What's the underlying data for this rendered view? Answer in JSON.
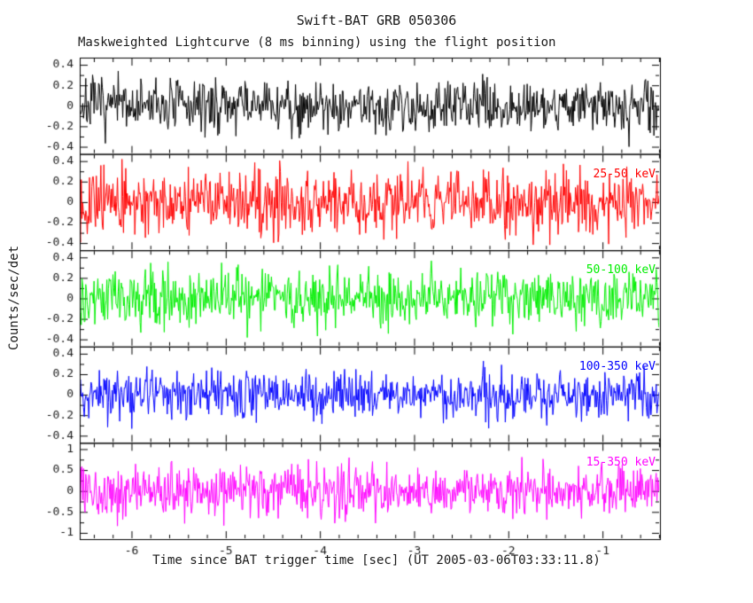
{
  "title": "Swift-BAT GRB 050306",
  "subtitle": "Maskweighted Lightcurve (8 ms binning) using the flight position",
  "xlabel": "Time since BAT trigger time [sec] (UT 2005-03-06T03:33:11.8)",
  "ylabel": "Counts/sec/det",
  "frame_color": "#000000",
  "chart_data": {
    "type": "line",
    "title": "Swift-BAT GRB 050306",
    "subtitle": "Maskweighted Lightcurve (8 ms binning) using the flight position",
    "xlabel": "Time since BAT trigger time [sec] (UT 2005-03-06T03:33:11.8)",
    "ylabel": "Counts/sec/det",
    "x_range": [
      -6.55,
      -0.39
    ],
    "bin_seconds": 0.008,
    "x_ticks": [
      "-6",
      "-5",
      "-4",
      "-3",
      "-2",
      "-1"
    ],
    "x_minor_step": 0.2,
    "grid": false,
    "legend_position": "inside-right-per-panel",
    "panels": [
      {
        "name": "lightcurve-black",
        "label": "",
        "color": "#000000",
        "ylim": [
          -0.47,
          0.47
        ],
        "y_ticks": [
          "0.4",
          "0.2",
          "0",
          "-0.2",
          "-0.4"
        ],
        "y_minor_step": 0.1,
        "noise_sigma": 0.13,
        "mean": 0,
        "seed": 7
      },
      {
        "name": "lightcurve-red",
        "label": "25-50 keV",
        "color": "#ff0000",
        "ylim": [
          -0.47,
          0.47
        ],
        "y_ticks": [
          "0.4",
          "0.2",
          "0",
          "-0.2",
          "-0.4"
        ],
        "y_minor_step": 0.1,
        "noise_sigma": 0.15,
        "mean": 0,
        "seed": 13
      },
      {
        "name": "lightcurve-green",
        "label": "50-100 keV",
        "color": "#00ee00",
        "ylim": [
          -0.47,
          0.47
        ],
        "y_ticks": [
          "0.4",
          "0.2",
          "0",
          "-0.2",
          "-0.4"
        ],
        "y_minor_step": 0.1,
        "noise_sigma": 0.14,
        "mean": 0,
        "seed": 29
      },
      {
        "name": "lightcurve-blue",
        "label": "100-350 keV",
        "color": "#0000ff",
        "ylim": [
          -0.47,
          0.47
        ],
        "y_ticks": [
          "0.4",
          "0.2",
          "0",
          "-0.2",
          "-0.4"
        ],
        "y_minor_step": 0.1,
        "noise_sigma": 0.12,
        "mean": 0,
        "seed": 41
      },
      {
        "name": "lightcurve-magenta",
        "label": "15-350 keV",
        "color": "#ff00ff",
        "ylim": [
          -1.15,
          1.15
        ],
        "y_ticks": [
          "1",
          "0.5",
          "0",
          "-0.5",
          "-1"
        ],
        "y_minor_step": 0.25,
        "noise_sigma": 0.3,
        "mean": 0,
        "seed": 53
      }
    ]
  }
}
